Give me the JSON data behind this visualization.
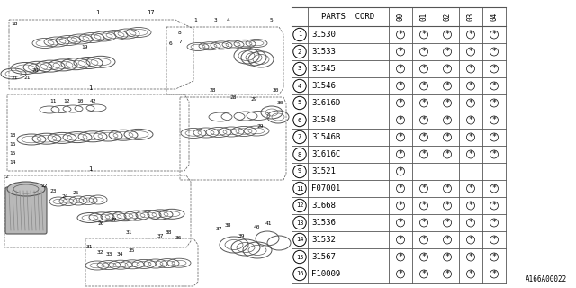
{
  "diagram_label": "A166A00022",
  "rows": [
    {
      "num": "1",
      "part": "31530",
      "marks": [
        1,
        1,
        1,
        1,
        1
      ]
    },
    {
      "num": "2",
      "part": "31533",
      "marks": [
        1,
        1,
        1,
        1,
        1
      ]
    },
    {
      "num": "3",
      "part": "31545",
      "marks": [
        1,
        1,
        1,
        1,
        1
      ]
    },
    {
      "num": "4",
      "part": "31546",
      "marks": [
        1,
        1,
        1,
        1,
        1
      ]
    },
    {
      "num": "5",
      "part": "31616D",
      "marks": [
        1,
        1,
        1,
        1,
        1
      ]
    },
    {
      "num": "6",
      "part": "31548",
      "marks": [
        1,
        1,
        1,
        1,
        1
      ]
    },
    {
      "num": "7",
      "part": "31546B",
      "marks": [
        1,
        1,
        1,
        1,
        1
      ]
    },
    {
      "num": "8",
      "part": "31616C",
      "marks": [
        1,
        1,
        1,
        1,
        1
      ]
    },
    {
      "num": "9",
      "part": "31521",
      "marks": [
        1,
        0,
        0,
        0,
        0
      ]
    },
    {
      "num": "11",
      "part": "F07001",
      "marks": [
        1,
        1,
        1,
        1,
        1
      ]
    },
    {
      "num": "12",
      "part": "31668",
      "marks": [
        1,
        1,
        1,
        1,
        1
      ]
    },
    {
      "num": "13",
      "part": "31536",
      "marks": [
        1,
        1,
        1,
        1,
        1
      ]
    },
    {
      "num": "14",
      "part": "31532",
      "marks": [
        1,
        1,
        1,
        1,
        1
      ]
    },
    {
      "num": "15",
      "part": "31567",
      "marks": [
        1,
        1,
        1,
        1,
        1
      ]
    },
    {
      "num": "16",
      "part": "F10009",
      "marks": [
        1,
        1,
        1,
        1,
        1
      ]
    }
  ],
  "bg_color": "#ffffff",
  "line_color": "#555555",
  "text_color": "#000000"
}
